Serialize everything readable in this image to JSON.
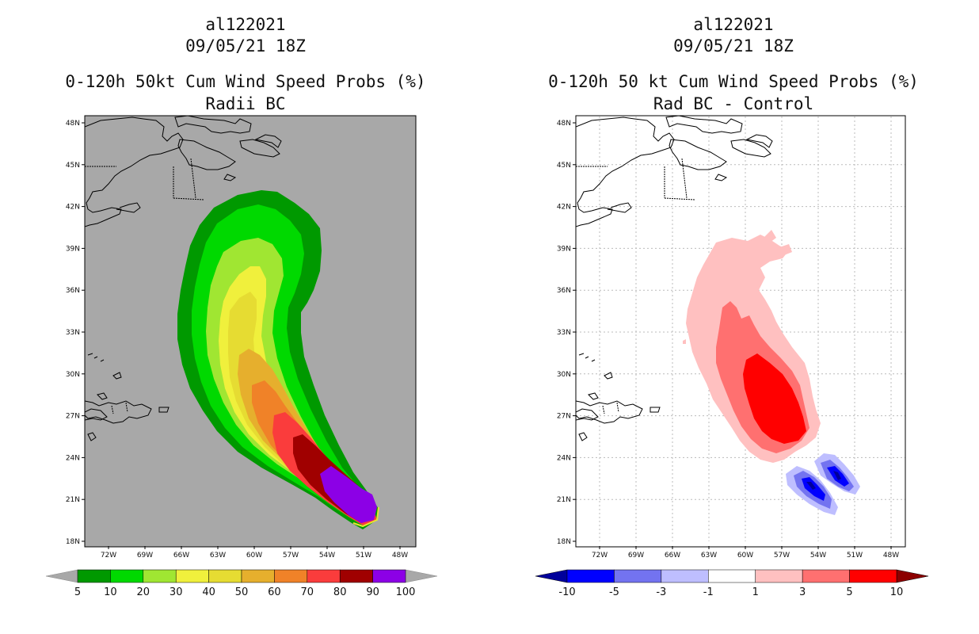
{
  "left_panel": {
    "storm_id": "al122021",
    "datetime": "09/05/21 18Z",
    "title": "0-120h 50kt Cum Wind Speed Probs (%)",
    "subtitle": "Radii BC",
    "background_color": "#a8a8a8",
    "lat_labels": [
      "48N",
      "45N",
      "42N",
      "39N",
      "36N",
      "33N",
      "30N",
      "27N",
      "24N",
      "21N",
      "18N"
    ],
    "lon_labels": [
      "72W",
      "69W",
      "66W",
      "63W",
      "60W",
      "57W",
      "54W",
      "51W",
      "48W"
    ],
    "colorbar": {
      "labels": [
        "5",
        "10",
        "20",
        "30",
        "40",
        "50",
        "60",
        "70",
        "80",
        "90",
        "100"
      ],
      "colors": [
        "#009900",
        "#00d900",
        "#a0e632",
        "#f0f03c",
        "#e6dc32",
        "#e6af2d",
        "#f08228",
        "#fa3c3c",
        "#a00000",
        "#8c00e6"
      ]
    }
  },
  "right_panel": {
    "storm_id": "al122021",
    "datetime": "09/05/21 18Z",
    "title": "0-120h 50 kt Cum Wind Speed Probs (%)",
    "subtitle": "Rad BC - Control",
    "background_color": "#ffffff",
    "lat_labels": [
      "48N",
      "45N",
      "42N",
      "39N",
      "36N",
      "33N",
      "30N",
      "27N",
      "24N",
      "21N",
      "18N"
    ],
    "lon_labels": [
      "72W",
      "69W",
      "66W",
      "63W",
      "60W",
      "57W",
      "54W",
      "51W",
      "48W"
    ],
    "colorbar": {
      "labels": [
        "-10",
        "-5",
        "-3",
        "-1",
        "1",
        "3",
        "5",
        "10"
      ],
      "colors": [
        "#00009b",
        "#0000ff",
        "#7373f0",
        "#bebeff",
        "#ffffff",
        "#ffc0c0",
        "#ff7070",
        "#ff0000",
        "#8c0000"
      ]
    }
  }
}
